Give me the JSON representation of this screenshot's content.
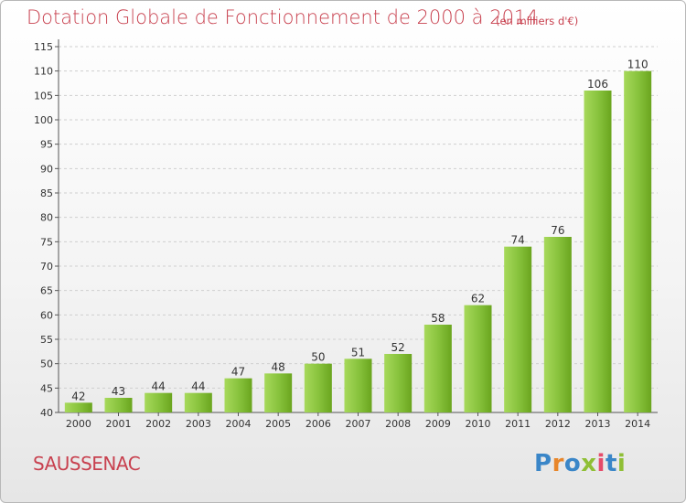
{
  "header": {
    "title": "Dotation Globale de Fonctionnement de 2000 à 2014",
    "subtitle": "(en milliers d'€)"
  },
  "footer": {
    "place": "SAUSSENAC",
    "logo": "Proxiti"
  },
  "colors": {
    "title": "#c8414f",
    "bar_light": "#a7d95b",
    "bar_dark": "#6aa51e",
    "grid": "#cfcfcf"
  },
  "chart_data": {
    "type": "bar",
    "categories": [
      "2000",
      "2001",
      "2002",
      "2003",
      "2004",
      "2005",
      "2006",
      "2007",
      "2008",
      "2009",
      "2010",
      "2011",
      "2012",
      "2013",
      "2014"
    ],
    "values": [
      42,
      43,
      44,
      44,
      47,
      48,
      50,
      51,
      52,
      58,
      62,
      74,
      76,
      106,
      110
    ],
    "ylim": [
      40,
      115
    ],
    "yticks": [
      40,
      45,
      50,
      55,
      60,
      65,
      70,
      75,
      80,
      85,
      90,
      95,
      100,
      105,
      110,
      115
    ],
    "grid": "horizontal dashed",
    "title": "Dotation Globale de Fonctionnement de 2000 à 2014",
    "subtitle": "(en milliers d'€)",
    "xlabel": "",
    "ylabel": ""
  }
}
